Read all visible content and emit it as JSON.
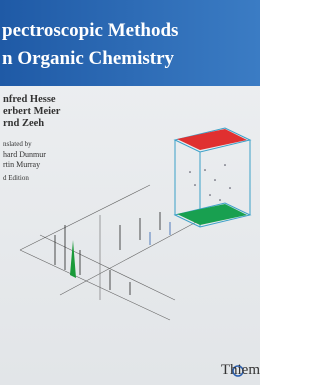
{
  "cover": {
    "title_lines": [
      "pectroscopic Methods",
      "n Organic Chemistry"
    ],
    "authors": [
      "nfred Hesse",
      "erbert Meier",
      "rnd Zeeh"
    ],
    "translated_label": "nslated by",
    "translators": [
      "hard Dunmur",
      "rtin Murray"
    ],
    "edition": "d Edition",
    "publisher": "Thiem"
  }
}
